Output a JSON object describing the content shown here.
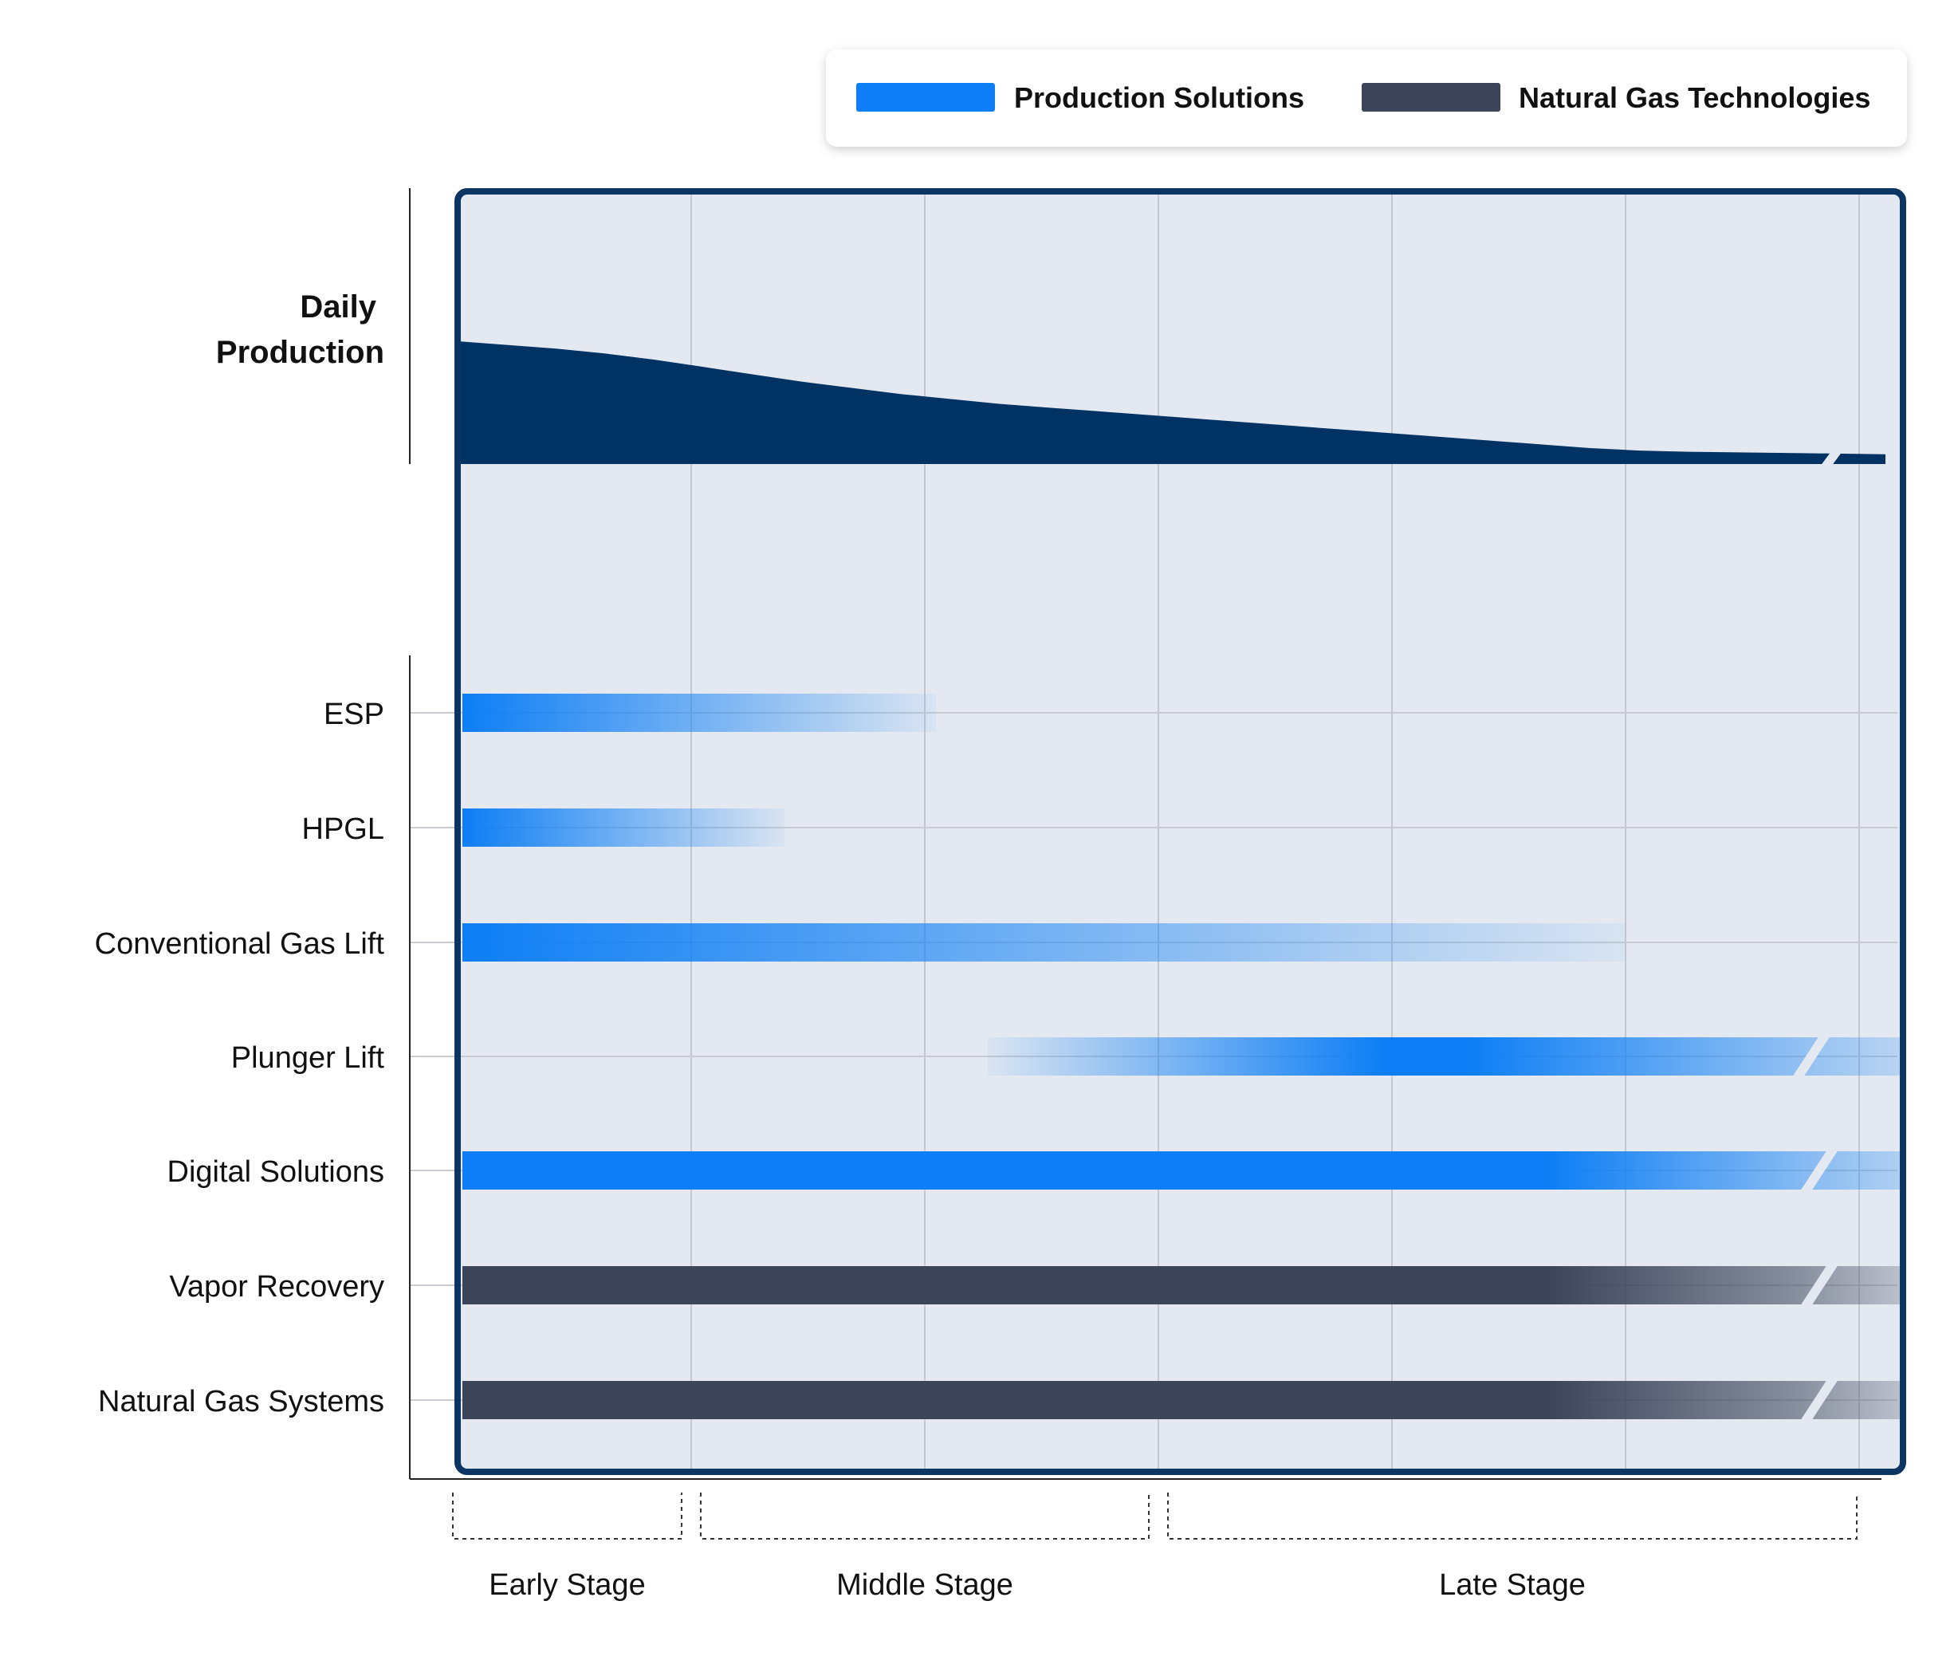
{
  "legend": {
    "items": [
      {
        "label": "Production Solutions",
        "color": "#0d7ef5"
      },
      {
        "label": "Natural Gas Technologies",
        "color": "#3b4459"
      }
    ]
  },
  "chart_data": {
    "type": "timeline",
    "title": "",
    "xlabel": "",
    "ylabel": "",
    "grid": true,
    "legend_placement": "top-right",
    "production_label_lines": [
      "Daily",
      "Production"
    ],
    "production_curve": {
      "color": "#003263",
      "values": [
        1.0,
        0.97,
        0.94,
        0.9,
        0.85,
        0.79,
        0.73,
        0.67,
        0.62,
        0.57,
        0.53,
        0.49,
        0.46,
        0.43,
        0.4,
        0.37,
        0.34,
        0.31,
        0.28,
        0.25,
        0.22,
        0.19,
        0.16,
        0.13,
        0.11,
        0.1,
        0.095,
        0.09,
        0.085,
        0.08
      ]
    },
    "stages": [
      {
        "label": "Early Stage",
        "range": [
          0,
          1
        ]
      },
      {
        "label": "Middle Stage",
        "range": [
          1,
          3
        ]
      },
      {
        "label": "Late Stage",
        "range": [
          3,
          6
        ]
      }
    ],
    "grid_divisions": 6,
    "rows": [
      {
        "label": "ESP",
        "group": "Production Solutions",
        "start": 0.0,
        "end": 2.05,
        "fade": "right",
        "continues": false
      },
      {
        "label": "HPGL",
        "group": "Production Solutions",
        "start": 0.0,
        "end": 1.4,
        "fade": "right",
        "continues": false
      },
      {
        "label": "Conventional Gas Lift",
        "group": "Production Solutions",
        "start": 0.0,
        "end": 5.0,
        "fade": "right",
        "continues": false
      },
      {
        "label": "Plunger Lift",
        "group": "Production Solutions",
        "start": 2.27,
        "end": 6.2,
        "fade": "both",
        "peak": 4.2,
        "continues": true
      },
      {
        "label": "Digital Solutions",
        "group": "Production Solutions",
        "start": 0.0,
        "end": 6.2,
        "fade": "tail",
        "continues": true
      },
      {
        "label": "Vapor Recovery",
        "group": "Natural Gas Technologies",
        "start": 0.0,
        "end": 6.2,
        "fade": "tail",
        "continues": true
      },
      {
        "label": "Natural Gas Systems",
        "group": "Natural Gas Technologies",
        "start": 0.0,
        "end": 6.2,
        "fade": "tail",
        "continues": true
      }
    ]
  }
}
